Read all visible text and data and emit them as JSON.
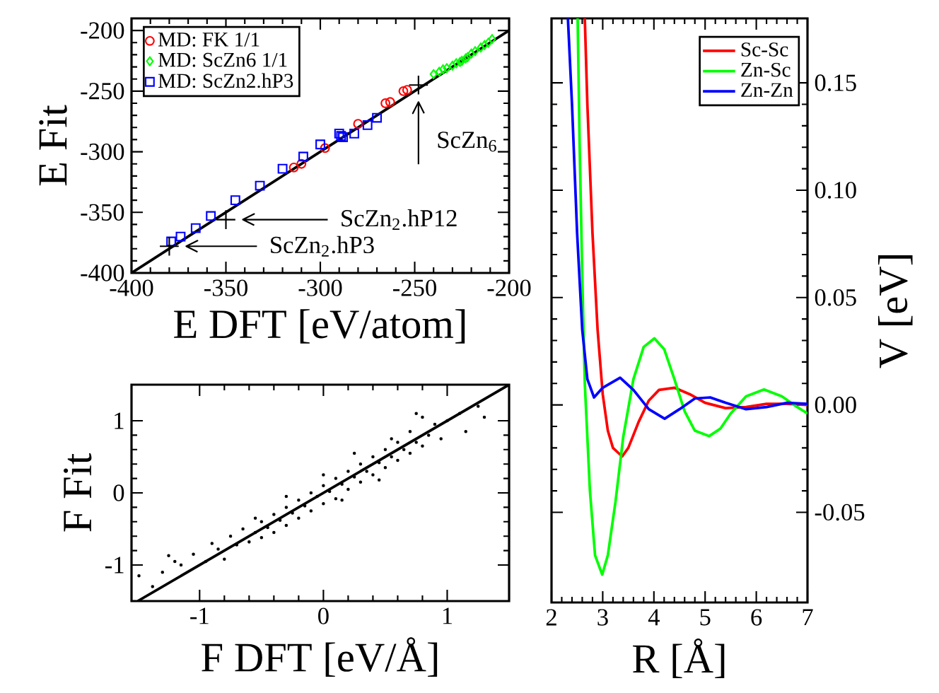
{
  "chart_data": [
    {
      "type": "scatter",
      "xlabel": "E DFT  [eV/atom]",
      "ylabel": "E Fit",
      "xlim": [
        -400,
        -200
      ],
      "ylim": [
        -400,
        -190
      ],
      "xticks": [
        -400,
        -350,
        -300,
        -250,
        -200
      ],
      "yticks": [
        -400,
        -350,
        -300,
        -250,
        -200
      ],
      "legend": "top left",
      "series": [
        {
          "name": "MD: FK 1/1",
          "color": "#ff0000",
          "marker": "circle",
          "x": [
            -314,
            -310,
            -297.5,
            -280,
            -265.5,
            -263,
            -256,
            -254
          ],
          "values": [
            -313,
            -310,
            -297,
            -277,
            -260,
            -259,
            -250,
            -249
          ]
        },
        {
          "name": "MD: ScZn6 1/1",
          "color": "#00ff00",
          "marker": "diamond",
          "x": [
            -240,
            -237,
            -235,
            -233,
            -230,
            -228,
            -226,
            -225,
            -223,
            -222,
            -220,
            -218,
            -215,
            -213,
            -211,
            -209
          ],
          "values": [
            -236,
            -234,
            -232,
            -231,
            -229,
            -227,
            -226,
            -225,
            -223,
            -222,
            -219,
            -217,
            -214,
            -212,
            -210,
            -207
          ]
        },
        {
          "name": "MD: ScZn2.hP3",
          "color": "#0000ff",
          "marker": "square",
          "x": [
            -379,
            -374,
            -366,
            -358,
            -345,
            -332,
            -320,
            -309,
            -300,
            -290,
            -289,
            -288,
            -282,
            -275,
            -270
          ],
          "values": [
            -374,
            -370,
            -363,
            -353,
            -340,
            -328,
            -314,
            -304,
            -294,
            -285,
            -287,
            -288,
            -285,
            -278,
            -272
          ]
        },
        {
          "type": "scatter",
          "color": "#000000",
          "marker": "cross",
          "x": [
            -380,
            -350,
            -248
          ],
          "values": [
            -378,
            -356,
            -245
          ]
        },
        {
          "type": "line",
          "color": "#000000",
          "marker": "none",
          "x": [
            -400,
            -200
          ],
          "values": [
            -400,
            -200
          ]
        }
      ],
      "annotations": [
        {
          "text": "ScZn$_{6}$",
          "x": -248,
          "y": -245
        },
        "ScZn$_{2}$.hP12",
        "ScZn$_{2}$.hP3"
      ]
    },
    {
      "type": "scatter",
      "xlabel": "F DFT [eV/Å]",
      "ylabel": "F  Fit",
      "xlim": [
        -1.55,
        1.5
      ],
      "ylim": [
        -1.5,
        1.5
      ],
      "xticks": [
        -1,
        0,
        1
      ],
      "yticks": [
        -1,
        0,
        1
      ],
      "legend": false,
      "series": [
        {
          "color": "#000000",
          "marker": "circle",
          "x": [
            -1.49,
            -1.38,
            -1.25,
            -1.3,
            -1.15,
            -1.05,
            -0.95,
            -0.9,
            -0.85,
            -0.8,
            -0.75,
            -0.7,
            -0.65,
            -0.6,
            -0.55,
            -0.5,
            -0.5,
            -0.45,
            -0.4,
            -0.4,
            -0.35,
            -0.3,
            -0.3,
            -0.25,
            -0.2,
            -0.2,
            -0.15,
            -0.1,
            -0.1,
            -0.05,
            0,
            0,
            0.05,
            0.1,
            0.1,
            0.15,
            0.2,
            0.2,
            0.25,
            0.3,
            0.3,
            0.35,
            0.4,
            0.4,
            0.45,
            0.5,
            0.5,
            0.55,
            0.6,
            0.6,
            0.65,
            0.7,
            0.7,
            0.75,
            0.8,
            0.8,
            0.85,
            0.9,
            0.95,
            1.0,
            1.1,
            1.15,
            1.25,
            1.3,
            -0.55,
            0.25,
            0.45,
            -1.2,
            0.0,
            -0.3,
            0.15,
            0.55,
            0.75
          ],
          "values": [
            -1.15,
            -1.3,
            -0.87,
            -1.1,
            -1.0,
            -0.85,
            -0.95,
            -0.7,
            -0.78,
            -0.92,
            -0.6,
            -0.72,
            -0.5,
            -0.68,
            -0.55,
            -0.4,
            -0.62,
            -0.48,
            -0.3,
            -0.55,
            -0.38,
            -0.2,
            -0.45,
            -0.28,
            -0.1,
            -0.35,
            -0.18,
            0.0,
            -0.25,
            -0.05,
            0.1,
            -0.15,
            0.02,
            0.2,
            -0.08,
            0.12,
            0.3,
            0.05,
            0.22,
            0.4,
            0.15,
            0.3,
            0.5,
            0.25,
            0.42,
            0.6,
            0.35,
            0.5,
            0.7,
            0.45,
            0.6,
            0.85,
            0.55,
            0.7,
            1.05,
            0.65,
            0.8,
            0.95,
            0.75,
            1.0,
            1.1,
            0.85,
            1.2,
            1.05,
            -0.35,
            0.55,
            0.18,
            -0.95,
            0.25,
            -0.05,
            -0.1,
            0.75,
            1.1
          ]
        },
        {
          "type": "line",
          "color": "#000000",
          "marker": "none",
          "x": [
            -1.5,
            1.5
          ],
          "values": [
            -1.5,
            1.5
          ]
        }
      ]
    },
    {
      "type": "line",
      "xlabel": "R  [Å]",
      "ylabel": "V  [eV]",
      "xlim": [
        2,
        7
      ],
      "ylim": [
        -0.092,
        0.18
      ],
      "xticks": [
        2,
        3,
        4,
        5,
        6,
        7
      ],
      "yticks": [
        {
          "value": -0.05,
          "label": "-0.05"
        },
        {
          "value": 0,
          "label": "0.00"
        },
        0.05,
        {
          "value": 0.1,
          "label": "0.10"
        },
        0.15
      ],
      "legend": "top right",
      "series": [
        {
          "name": "Sc-Sc",
          "color": "#ff0000",
          "x": [
            2.65,
            2.7,
            2.8,
            2.9,
            3.0,
            3.1,
            3.2,
            3.38,
            3.5,
            3.7,
            3.9,
            4.1,
            4.4,
            4.7,
            5.0,
            5.4,
            5.8,
            6.2,
            6.6,
            7.0
          ],
          "values": [
            0.18,
            0.14,
            0.08,
            0.035,
            0.005,
            -0.012,
            -0.02,
            -0.024,
            -0.02,
            -0.008,
            0.002,
            0.007,
            0.008,
            0.005,
            0.001,
            -0.0015,
            -0.001,
            0.0005,
            0.0005,
            0.0
          ]
        },
        {
          "name": "Zn-Sc",
          "color": "#00ff00",
          "x": [
            2.51,
            2.55,
            2.6,
            2.65,
            2.75,
            2.85,
            2.99,
            3.1,
            3.25,
            3.4,
            3.6,
            3.8,
            4.01,
            4.2,
            4.4,
            4.6,
            4.8,
            5.08,
            5.3,
            5.5,
            5.8,
            6.15,
            6.5,
            6.8,
            7.0
          ],
          "values": [
            0.18,
            0.12,
            0.06,
            0.01,
            -0.04,
            -0.07,
            -0.079,
            -0.07,
            -0.045,
            -0.015,
            0.012,
            0.027,
            0.031,
            0.026,
            0.012,
            -0.003,
            -0.012,
            -0.0145,
            -0.011,
            -0.004,
            0.004,
            0.0072,
            0.004,
            -0.001,
            -0.004
          ]
        },
        {
          "name": "Zn-Zn",
          "color": "#0000ff",
          "x": [
            2.32,
            2.4,
            2.5,
            2.6,
            2.7,
            2.83,
            3.0,
            3.34,
            3.6,
            3.9,
            4.21,
            4.5,
            4.8,
            5.1,
            5.4,
            5.8,
            6.2,
            6.6,
            7.0
          ],
          "values": [
            0.18,
            0.14,
            0.08,
            0.035,
            0.012,
            0.0035,
            0.008,
            0.0127,
            0.007,
            -0.002,
            -0.0064,
            -0.002,
            0.003,
            0.0035,
            0.001,
            -0.002,
            -0.001,
            0.001,
            0.0005
          ]
        }
      ]
    }
  ]
}
